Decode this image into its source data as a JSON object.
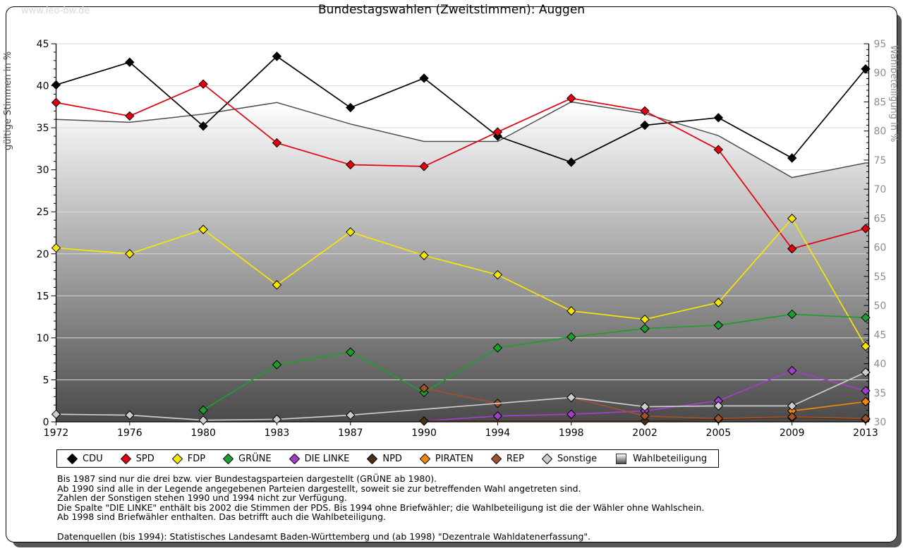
{
  "page": {
    "watermark": "www.leo-bw.de"
  },
  "chart_data": {
    "type": "line",
    "title": "Bundestagswahlen (Zweitstimmen): Auggen",
    "categories": [
      1972,
      1976,
      1980,
      1983,
      1987,
      1990,
      1994,
      1998,
      2002,
      2005,
      2009,
      2013
    ],
    "y_left": {
      "label": "gültige Stimmen in %",
      "min": 0,
      "max": 45,
      "tick_step": 5,
      "minor_step": 1
    },
    "y_right": {
      "label": "Wahlbeteiligung in %",
      "min": 30,
      "max": 95,
      "tick_step": 5,
      "minor_step": 1
    },
    "grid": true,
    "legend_position": "bottom",
    "series": [
      {
        "name": "CDU",
        "color": "#000000",
        "axis": "left",
        "values": [
          40.1,
          42.8,
          35.2,
          43.5,
          37.4,
          40.9,
          34.0,
          30.9,
          35.3,
          36.2,
          31.4,
          42.0
        ]
      },
      {
        "name": "SPD",
        "color": "#e3000f",
        "axis": "left",
        "values": [
          38.0,
          36.4,
          40.2,
          33.2,
          30.6,
          30.4,
          34.5,
          38.5,
          37.0,
          32.4,
          20.6,
          23.0
        ]
      },
      {
        "name": "FDP",
        "color": "#f7e700",
        "axis": "left",
        "values": [
          20.7,
          20.0,
          22.9,
          16.3,
          22.6,
          19.8,
          17.5,
          13.2,
          12.2,
          14.2,
          24.2,
          9.0
        ]
      },
      {
        "name": "GRÜNE",
        "color": "#1ca02c",
        "axis": "left",
        "values": [
          null,
          null,
          1.4,
          6.8,
          8.3,
          3.5,
          8.8,
          10.1,
          11.1,
          11.5,
          12.8,
          12.4
        ]
      },
      {
        "name": "DIE LINKE",
        "color": "#a040c8",
        "axis": "left",
        "values": [
          null,
          null,
          null,
          null,
          null,
          0.1,
          0.7,
          0.9,
          1.3,
          2.5,
          6.1,
          3.7
        ]
      },
      {
        "name": "NPD",
        "color": "#4a2f17",
        "axis": "left",
        "values": [
          null,
          null,
          null,
          null,
          null,
          0.1,
          null,
          null,
          0.1,
          0.3,
          0.5,
          0.3
        ]
      },
      {
        "name": "PIRATEN",
        "color": "#ef8a00",
        "axis": "left",
        "values": [
          null,
          null,
          null,
          null,
          null,
          null,
          null,
          null,
          null,
          null,
          1.3,
          2.4
        ]
      },
      {
        "name": "REP",
        "color": "#a0522d",
        "axis": "left",
        "values": [
          null,
          null,
          null,
          null,
          null,
          4.0,
          2.2,
          2.9,
          0.7,
          0.4,
          0.6,
          0.4
        ]
      },
      {
        "name": "Sonstige",
        "color": "#cdcdcd",
        "axis": "left",
        "values": [
          0.9,
          0.8,
          0.2,
          0.3,
          0.8,
          null,
          null,
          2.9,
          1.8,
          1.9,
          1.9,
          5.9
        ]
      },
      {
        "name": "Wahlbeteiligung",
        "color": "#4f4f4f",
        "axis": "right",
        "style": "area-gradient",
        "values": [
          82.0,
          81.5,
          82.9,
          84.9,
          81.2,
          78.2,
          78.2,
          85.0,
          83.0,
          79.2,
          72.0,
          74.5
        ]
      }
    ]
  },
  "footnotes": {
    "lines": [
      "Bis 1987 sind nur die drei bzw. vier Bundestagsparteien dargestellt (GRÜNE ab 1980).",
      "Ab 1990 sind alle in der Legende angegebenen Parteien dargestellt, soweit sie zur betreffenden Wahl angetreten sind.",
      "Zahlen der Sonstigen stehen 1990 und 1994 nicht zur Verfügung.",
      "Die Spalte \"DIE LINKE\" enthält bis 2002 die Stimmen der PDS. Bis 1994 ohne Briefwähler; die Wahlbeteiligung ist die der Wähler ohne Wahlschein.",
      "Ab 1998 sind Briefwähler enthalten. Das betrifft auch die Wahlbeteiligung.",
      "",
      "Datenquellen (bis 1994): Statistisches Landesamt Baden-Württemberg und (ab 1998) \"Dezentrale Wahldatenerfassung\"."
    ]
  }
}
